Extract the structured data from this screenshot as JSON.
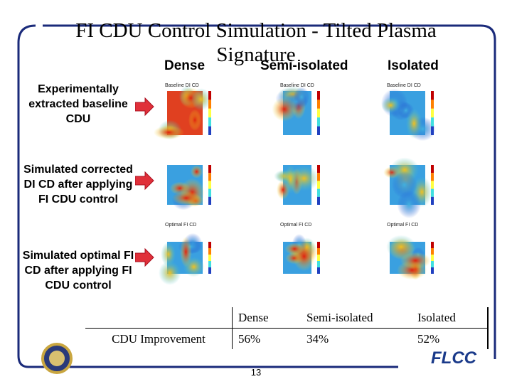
{
  "title": "FI CDU Control Simulation - Tilted Plasma Signature",
  "columns": [
    "Dense",
    "Semi-isolated",
    "Isolated"
  ],
  "rows": [
    {
      "label": "Experimentally extracted baseline CDU",
      "caption": "Baseline DI CD"
    },
    {
      "label": "Simulated corrected DI CD after applying FI CDU control"
    },
    {
      "label": "Simulated optimal FI CD after applying FI CDU control",
      "caption": "Optimal FI CD"
    }
  ],
  "table": {
    "header": [
      "Dense",
      "Semi-isolated",
      "Isolated"
    ],
    "rows": [
      [
        "CDU Improvement",
        "56%",
        "34%",
        "52%"
      ]
    ]
  },
  "page_number": "13",
  "logo_text": "FLCC"
}
